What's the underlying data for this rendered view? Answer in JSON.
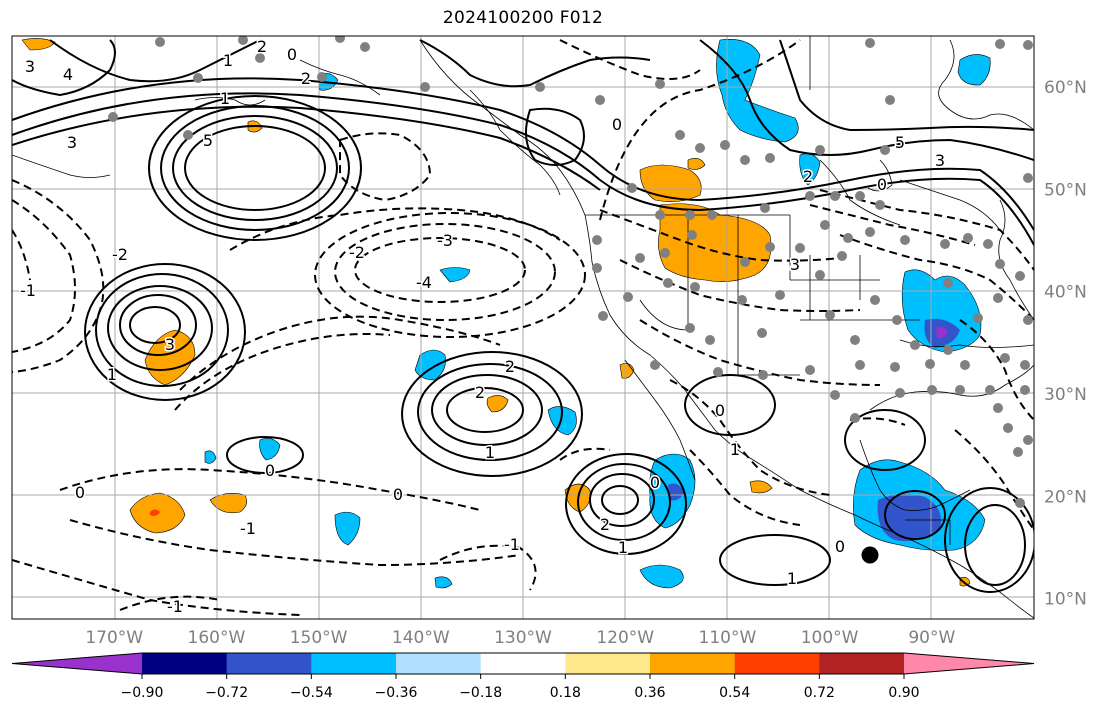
{
  "title": "2024100200 F012",
  "map": {
    "projection": "plate-carree",
    "extent": {
      "lon_min": -180,
      "lon_max": -80,
      "lat_min": 8,
      "lat_max": 65
    },
    "grid": true,
    "longitude_labels": [
      "170°W",
      "160°W",
      "150°W",
      "140°W",
      "130°W",
      "120°W",
      "110°W",
      "100°W",
      "90°W"
    ],
    "longitude_values": [
      -170,
      -160,
      -150,
      -140,
      -130,
      -120,
      -110,
      -100,
      -90
    ],
    "latitude_labels": [
      "60°N",
      "50°N",
      "40°N",
      "30°N",
      "20°N",
      "10°N"
    ],
    "latitude_values": [
      60,
      50,
      40,
      30,
      20,
      10
    ],
    "station_marker_color": "#808080",
    "highlight_marker_color": "#000000"
  },
  "contour_labels": [
    "3",
    "4",
    "5",
    "3",
    "1",
    "2",
    "1",
    "0",
    "2",
    "-3",
    "-2",
    "-4",
    "-1",
    "-2",
    "3",
    "1",
    "2",
    "2",
    "1",
    "0",
    "0",
    "-1",
    "0",
    "2",
    "1",
    "0",
    "-1",
    "0",
    "1",
    "3",
    "5",
    "3",
    "2",
    "0",
    "0",
    "-1",
    "0",
    "1"
  ],
  "colorbar": {
    "ticks": [
      "−0.90",
      "−0.72",
      "−0.54",
      "−0.36",
      "−0.18",
      "0.18",
      "0.36",
      "0.54",
      "0.72",
      "0.90"
    ],
    "extend": "both",
    "colors": [
      "#9932cc",
      "#000080",
      "#3355cc",
      "#00bfff",
      "#b0e0ff",
      "#ffffff",
      "#ffe88a",
      "#ffa500",
      "#ff4000",
      "#b22222",
      "#ff88aa"
    ]
  }
}
